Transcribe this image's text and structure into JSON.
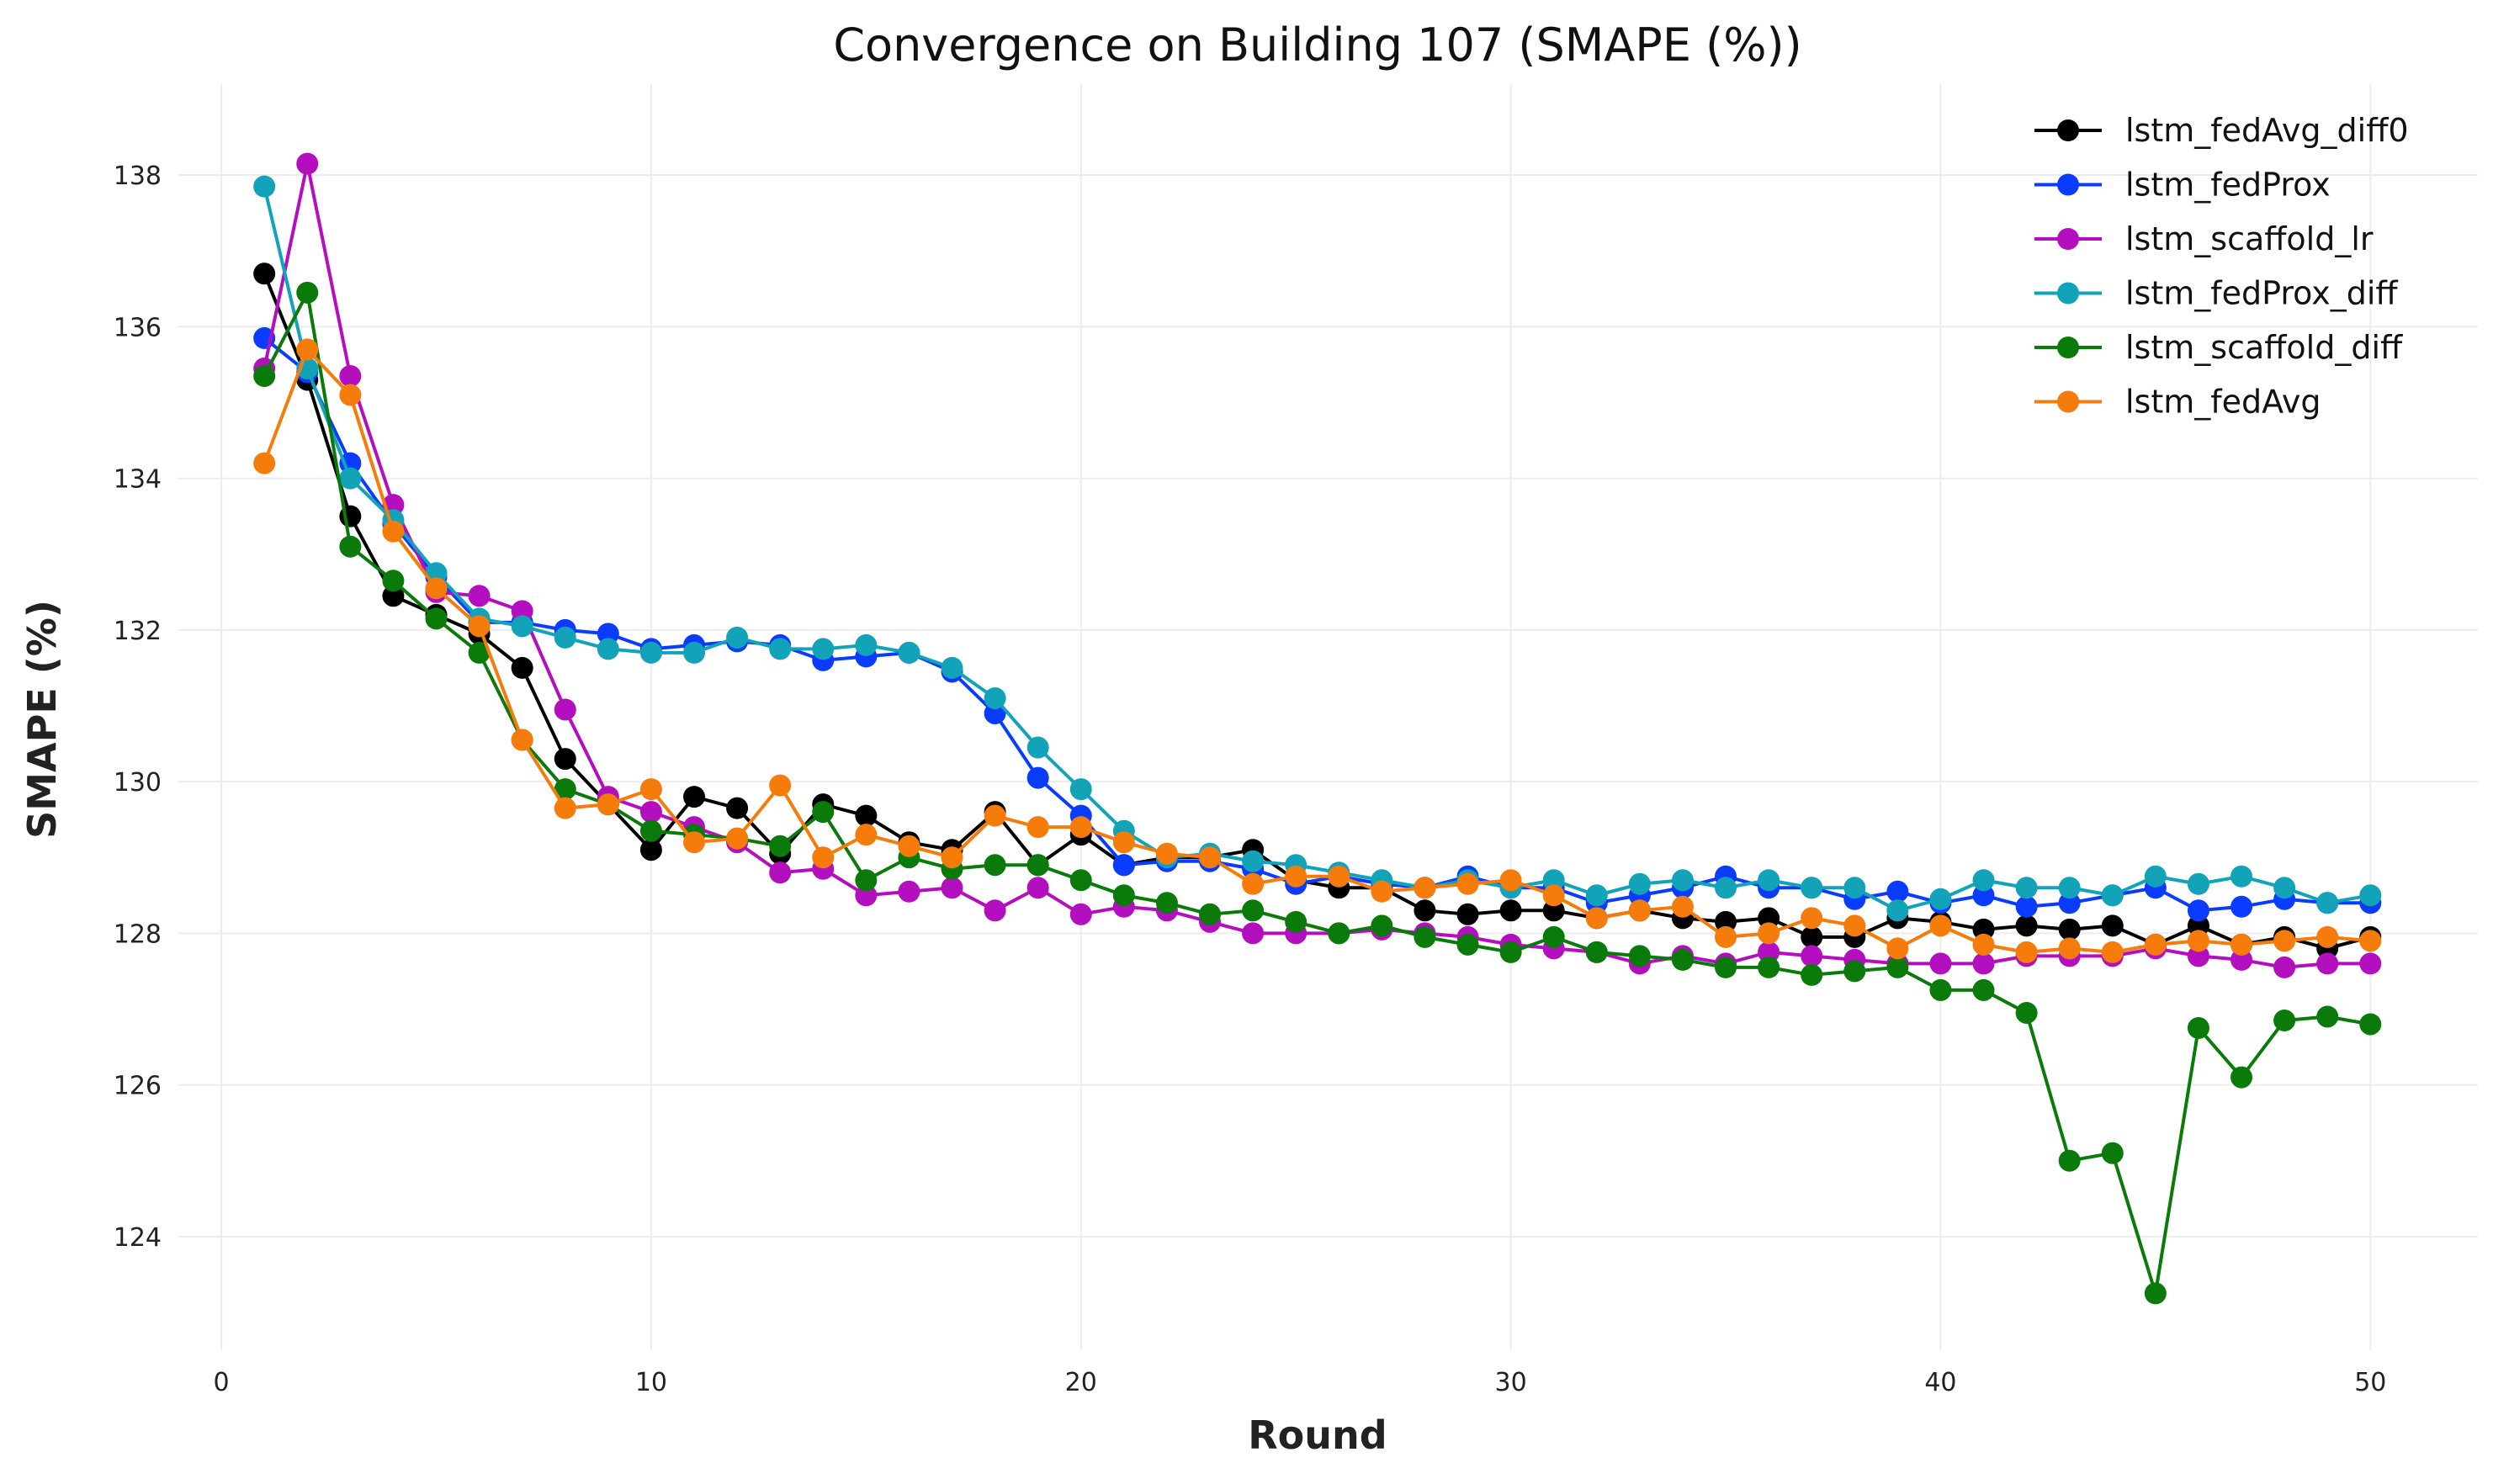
{
  "chart_data": {
    "type": "line",
    "title": "Convergence on Building 107 (SMAPE (%))",
    "xlabel": "Round",
    "ylabel": "SMAPE (%)",
    "xlim": [
      -1,
      52.5
    ],
    "ylim": [
      122.5,
      139.2
    ],
    "xticks": [
      0,
      10,
      20,
      30,
      40,
      50
    ],
    "yticks": [
      124,
      126,
      128,
      130,
      132,
      134,
      136,
      138
    ],
    "grid": true,
    "legend_position": "top-right",
    "x": [
      1,
      2,
      3,
      4,
      5,
      6,
      7,
      8,
      9,
      10,
      11,
      12,
      13,
      14,
      15,
      16,
      17,
      18,
      19,
      20,
      21,
      22,
      23,
      24,
      25,
      26,
      27,
      28,
      29,
      30,
      31,
      32,
      33,
      34,
      35,
      36,
      37,
      38,
      39,
      40,
      41,
      42,
      43,
      44,
      45,
      46,
      47,
      48,
      49,
      50
    ],
    "series": [
      {
        "name": "lstm_fedAvg_diff0",
        "color": "#000000",
        "values": [
          136.7,
          135.3,
          133.5,
          132.45,
          132.2,
          131.95,
          131.5,
          130.3,
          129.7,
          129.1,
          129.8,
          129.65,
          129.05,
          129.7,
          129.55,
          129.2,
          129.1,
          129.6,
          128.9,
          129.3,
          128.9,
          129.0,
          129.0,
          129.1,
          128.7,
          128.6,
          128.6,
          128.3,
          128.25,
          128.3,
          128.3,
          128.2,
          128.3,
          128.2,
          128.15,
          128.2,
          127.95,
          127.95,
          128.2,
          128.15,
          128.05,
          128.1,
          128.05,
          128.1,
          127.85,
          128.1,
          127.85,
          127.95,
          127.8,
          127.95
        ]
      },
      {
        "name": "lstm_fedProx",
        "color": "#0a3cff",
        "values": [
          135.85,
          135.4,
          134.2,
          133.4,
          132.7,
          132.1,
          132.1,
          132.0,
          131.95,
          131.75,
          131.8,
          131.85,
          131.8,
          131.6,
          131.65,
          131.7,
          131.45,
          130.9,
          130.05,
          129.55,
          128.9,
          128.95,
          128.95,
          128.85,
          128.65,
          128.75,
          128.65,
          128.6,
          128.75,
          128.6,
          128.6,
          128.4,
          128.5,
          128.6,
          128.75,
          128.6,
          128.6,
          128.45,
          128.55,
          128.4,
          128.5,
          128.35,
          128.4,
          128.5,
          128.6,
          128.3,
          128.35,
          128.45,
          128.4,
          128.4
        ]
      },
      {
        "name": "lstm_scaffold_lr",
        "color": "#b30fbf",
        "values": [
          135.45,
          138.15,
          135.35,
          133.65,
          132.5,
          132.45,
          132.25,
          130.95,
          129.8,
          129.6,
          129.4,
          129.2,
          128.8,
          128.85,
          128.5,
          128.55,
          128.6,
          128.3,
          128.6,
          128.25,
          128.35,
          128.3,
          128.15,
          128.0,
          128.0,
          128.0,
          128.05,
          128.0,
          127.95,
          127.85,
          127.8,
          127.75,
          127.6,
          127.7,
          127.6,
          127.75,
          127.7,
          127.65,
          127.6,
          127.6,
          127.6,
          127.7,
          127.7,
          127.7,
          127.8,
          127.7,
          127.65,
          127.55,
          127.6,
          127.6
        ]
      },
      {
        "name": "lstm_fedProx_diff",
        "color": "#12a3b8",
        "values": [
          137.85,
          135.45,
          134.0,
          133.45,
          132.75,
          132.15,
          132.05,
          131.9,
          131.75,
          131.7,
          131.7,
          131.9,
          131.75,
          131.75,
          131.8,
          131.7,
          131.5,
          131.1,
          130.45,
          129.9,
          129.35,
          129.0,
          129.05,
          128.95,
          128.9,
          128.8,
          128.7,
          128.6,
          128.7,
          128.6,
          128.7,
          128.5,
          128.65,
          128.7,
          128.6,
          128.7,
          128.6,
          128.6,
          128.3,
          128.45,
          128.7,
          128.6,
          128.6,
          128.5,
          128.75,
          128.65,
          128.75,
          128.6,
          128.4,
          128.5
        ]
      },
      {
        "name": "lstm_scaffold_diff",
        "color": "#0a7a0a",
        "values": [
          135.35,
          136.45,
          133.1,
          132.65,
          132.15,
          131.7,
          130.55,
          129.9,
          129.7,
          129.35,
          129.3,
          129.25,
          129.15,
          129.6,
          128.7,
          129.0,
          128.85,
          128.9,
          128.9,
          128.7,
          128.5,
          128.4,
          128.25,
          128.3,
          128.15,
          128.0,
          128.1,
          127.95,
          127.85,
          127.75,
          127.95,
          127.75,
          127.7,
          127.65,
          127.55,
          127.55,
          127.45,
          127.5,
          127.55,
          127.25,
          127.25,
          126.95,
          125.0,
          125.1,
          123.25,
          126.75,
          126.1,
          126.85,
          126.9,
          126.8
        ]
      },
      {
        "name": "lstm_fedAvg",
        "color": "#f57c0a",
        "values": [
          134.2,
          135.7,
          135.1,
          133.3,
          132.55,
          132.05,
          130.55,
          129.65,
          129.7,
          129.9,
          129.2,
          129.25,
          129.95,
          129.0,
          129.3,
          129.15,
          129.0,
          129.55,
          129.4,
          129.4,
          129.2,
          129.05,
          129.0,
          128.65,
          128.75,
          128.75,
          128.55,
          128.6,
          128.65,
          128.7,
          128.5,
          128.2,
          128.3,
          128.35,
          127.95,
          128.0,
          128.2,
          128.1,
          127.8,
          128.1,
          127.85,
          127.75,
          127.8,
          127.75,
          127.85,
          127.9,
          127.85,
          127.9,
          127.95,
          127.9
        ]
      }
    ]
  }
}
